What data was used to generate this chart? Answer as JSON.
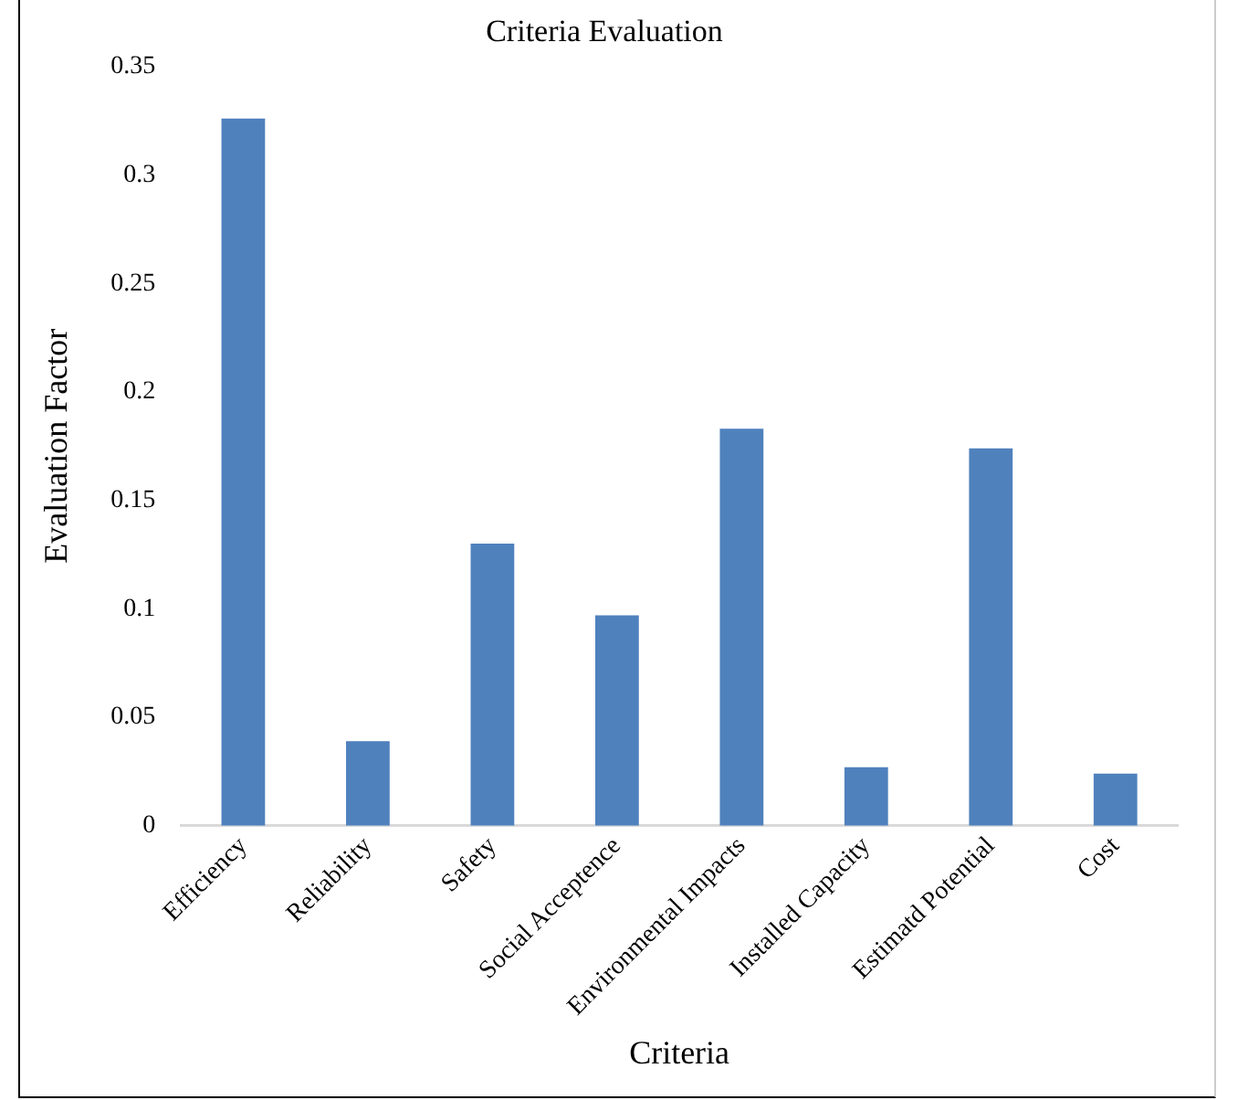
{
  "chart_data": {
    "type": "bar",
    "title": "Criteria Evaluation",
    "xlabel": "Criteria",
    "ylabel": "Evaluation Factor",
    "categories": [
      "Efficiency",
      "Reliability",
      "Safety",
      "Social Acceptence",
      "Environmental Impacts",
      "Installed Capacity",
      "Estimatd Potential",
      "Cost"
    ],
    "values": [
      0.326,
      0.039,
      0.13,
      0.097,
      0.183,
      0.027,
      0.174,
      0.024
    ],
    "color": "#4f81bd",
    "ylim": [
      0,
      0.35
    ],
    "yticks": [
      0,
      0.05,
      0.1,
      0.15,
      0.2,
      0.25,
      0.3,
      0.35
    ],
    "grid": false,
    "legend": false
  }
}
